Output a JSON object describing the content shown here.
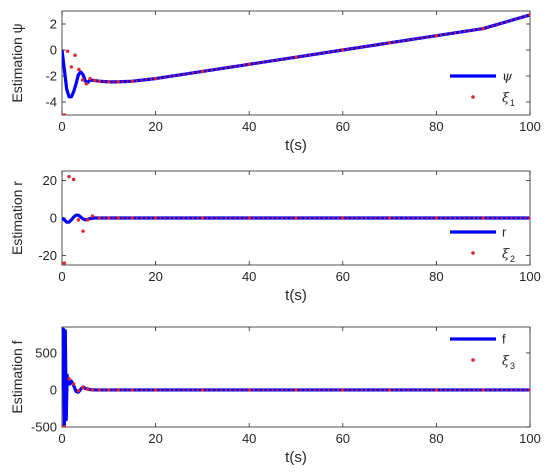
{
  "chart_data": [
    {
      "type": "line",
      "ylabel": "Estimation ψ",
      "xlabel": "t(s)",
      "xlim": [
        0,
        100
      ],
      "ylim": [
        -5,
        3
      ],
      "xticks": [
        0,
        20,
        40,
        60,
        80,
        100
      ],
      "xtick_labels": [
        "0",
        "20",
        "40",
        "60",
        "80",
        "100"
      ],
      "yticks": [
        -4,
        -2,
        0,
        2
      ],
      "ytick_labels": [
        "-4",
        "-2",
        "0",
        "2"
      ],
      "legend_position": "right",
      "series": [
        {
          "name": "ψ",
          "style": "line",
          "color": "#0000ff",
          "x": [
            0,
            0.5,
            1,
            1.5,
            2,
            2.5,
            3,
            3.5,
            4,
            4.5,
            5,
            5.5,
            6,
            7,
            8,
            10,
            12,
            15,
            20,
            30,
            40,
            50,
            60,
            70,
            80,
            90,
            100
          ],
          "y": [
            0,
            -1.5,
            -3.0,
            -3.6,
            -3.6,
            -3.2,
            -2.6,
            -1.9,
            -1.7,
            -1.9,
            -2.4,
            -2.5,
            -2.3,
            -2.35,
            -2.4,
            -2.45,
            -2.45,
            -2.4,
            -2.2,
            -1.65,
            -1.1,
            -0.55,
            0.0,
            0.55,
            1.1,
            1.65,
            2.7
          ]
        },
        {
          "name": "ξ",
          "name_subscript": "1",
          "style": "markers",
          "color": "#e8202a",
          "x": [
            0.5,
            1.2,
            2.0,
            2.8,
            3.6,
            4.4,
            5.2,
            6.0,
            7,
            8,
            10,
            12,
            15,
            20,
            30,
            40,
            50,
            60,
            70,
            80,
            90,
            100
          ],
          "y": [
            -5.0,
            -0.1,
            -1.3,
            -0.4,
            -1.5,
            -2.3,
            -2.6,
            -2.2,
            -2.35,
            -2.4,
            -2.45,
            -2.45,
            -2.4,
            -2.2,
            -1.65,
            -1.1,
            -0.55,
            0.0,
            0.55,
            1.1,
            1.65,
            2.7
          ]
        }
      ]
    },
    {
      "type": "line",
      "ylabel": "Estimation r",
      "xlabel": "t(s)",
      "xlim": [
        0,
        100
      ],
      "ylim": [
        -25,
        25
      ],
      "xticks": [
        0,
        20,
        40,
        60,
        80,
        100
      ],
      "xtick_labels": [
        "0",
        "20",
        "40",
        "60",
        "80",
        "100"
      ],
      "yticks": [
        -20,
        0,
        20
      ],
      "ytick_labels": [
        "-20",
        "0",
        "20"
      ],
      "legend_position": "right",
      "series": [
        {
          "name": "r",
          "style": "line",
          "color": "#0000ff",
          "x": [
            0,
            0.5,
            1,
            1.5,
            2,
            2.5,
            3,
            3.5,
            4,
            4.5,
            5,
            6,
            7,
            8,
            10,
            20,
            40,
            60,
            80,
            100
          ],
          "y": [
            0,
            -1,
            -2.2,
            -2.2,
            -1,
            0.5,
            1.5,
            1.5,
            0.5,
            -0.5,
            -1,
            -0.3,
            0,
            0,
            0,
            0,
            0,
            0,
            0,
            0
          ]
        },
        {
          "name": "ξ",
          "name_subscript": "2",
          "style": "markers",
          "color": "#e8202a",
          "x": [
            0.5,
            1.5,
            2.5,
            3.5,
            4.5,
            5.5,
            6.5,
            8,
            10,
            12,
            15,
            20,
            30,
            40,
            50,
            60,
            70,
            80,
            90,
            100
          ],
          "y": [
            -24,
            22,
            20.5,
            -1,
            -7,
            -1,
            1,
            0,
            0,
            0,
            0,
            0,
            0,
            0,
            0,
            0,
            0,
            0,
            0,
            0
          ]
        }
      ]
    },
    {
      "type": "line",
      "ylabel": "Estimation f",
      "xlabel": "t(s)",
      "xlim": [
        0,
        100
      ],
      "ylim": [
        -500,
        850
      ],
      "xticks": [
        0,
        20,
        40,
        60,
        80,
        100
      ],
      "xtick_labels": [
        "0",
        "20",
        "40",
        "60",
        "80",
        "100"
      ],
      "yticks": [
        -500,
        0,
        500
      ],
      "ytick_labels": [
        "-500",
        "0",
        "500"
      ],
      "legend_position": "top-right",
      "series": [
        {
          "name": "f",
          "style": "line",
          "color": "#0000ff",
          "x": [
            0,
            0.3,
            0.5,
            0.7,
            0.9,
            1.1,
            1.3,
            1.6,
            2,
            2.5,
            3,
            3.5,
            4,
            4.5,
            5,
            6,
            7,
            8,
            10,
            20,
            40,
            60,
            80,
            100
          ],
          "y": [
            0,
            820,
            -480,
            800,
            -400,
            200,
            100,
            80,
            120,
            60,
            -20,
            -30,
            10,
            40,
            20,
            5,
            0,
            0,
            0,
            0,
            0,
            0,
            0,
            0
          ]
        },
        {
          "name": "ξ",
          "name_subscript": "3",
          "style": "markers",
          "color": "#e8202a",
          "x": [
            0.5,
            1.5,
            2.5,
            3.5,
            4.5,
            5.5,
            6.5,
            8,
            10,
            12,
            15,
            20,
            30,
            40,
            50,
            60,
            70,
            80,
            90,
            100
          ],
          "y": [
            -500,
            150,
            80,
            -10,
            30,
            10,
            0,
            0,
            0,
            0,
            0,
            0,
            0,
            0,
            0,
            0,
            0,
            0,
            0,
            0
          ]
        }
      ]
    }
  ]
}
